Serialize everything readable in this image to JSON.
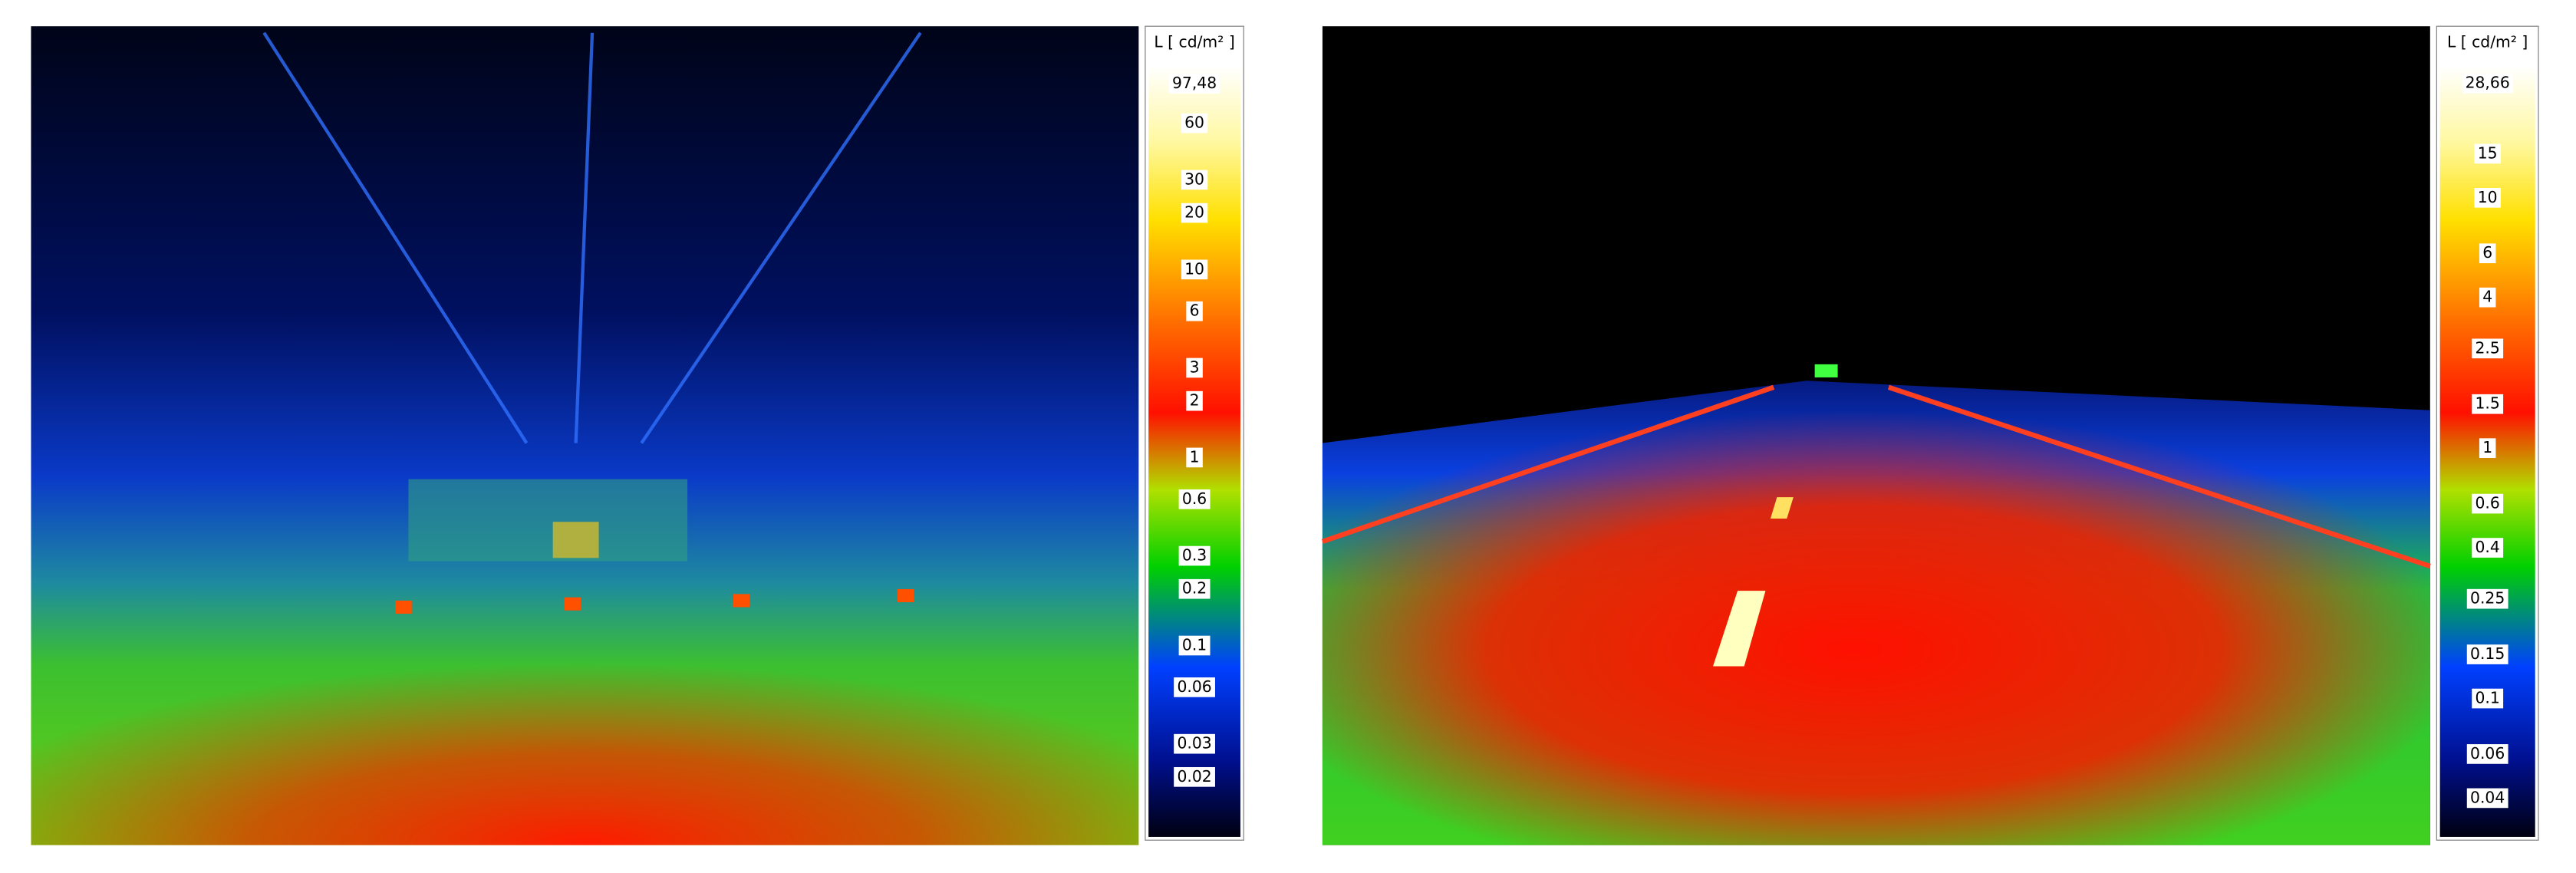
{
  "panels": [
    {
      "unit_label": "L [ cd/m² ]",
      "scale": {
        "log": true,
        "lim": [
          0.0096,
          189
        ],
        "max": {
          "value": 97.48,
          "label": "97,48"
        },
        "ticks": [
          60,
          30,
          20,
          10,
          6,
          3,
          2,
          1,
          0.6,
          0.3,
          0.2,
          0.1,
          0.06,
          0.03,
          0.02
        ]
      }
    },
    {
      "unit_label": "L [ cd/m² ]",
      "scale": {
        "log": true,
        "lim": [
          0.028,
          47
        ],
        "max": {
          "value": 28.66,
          "label": "28,66"
        },
        "ticks": [
          15,
          10,
          6,
          4,
          2.5,
          1.5,
          1,
          0.6,
          0.4,
          0.25,
          0.15,
          0.1,
          0.06,
          0.04
        ]
      }
    }
  ]
}
